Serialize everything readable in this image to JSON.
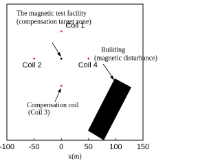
{
  "chart_data": {
    "type": "scatter",
    "x_label": "x(m)",
    "xlim": [
      -100,
      150
    ],
    "xticks": [
      -100,
      -50,
      0,
      50,
      100,
      150
    ],
    "ylim": [
      -150,
      100
    ],
    "series": [
      {
        "name": "Coils",
        "color": "#e03030",
        "x": [
          0,
          -50,
          50,
          0
        ],
        "y": [
          50,
          0,
          0,
          -50
        ],
        "labels": [
          "Coil 1",
          "Coil 2",
          "Coil 4",
          "Compensation coil"
        ]
      },
      {
        "name": "Test facility",
        "color": "#000000",
        "x": [
          0
        ],
        "y": [
          0
        ]
      }
    ],
    "annotations": [
      "The magnetic test facility",
      "(compensation target zone)",
      "(Coil 3)",
      "Building",
      "(magnetic disturbance)"
    ]
  }
}
